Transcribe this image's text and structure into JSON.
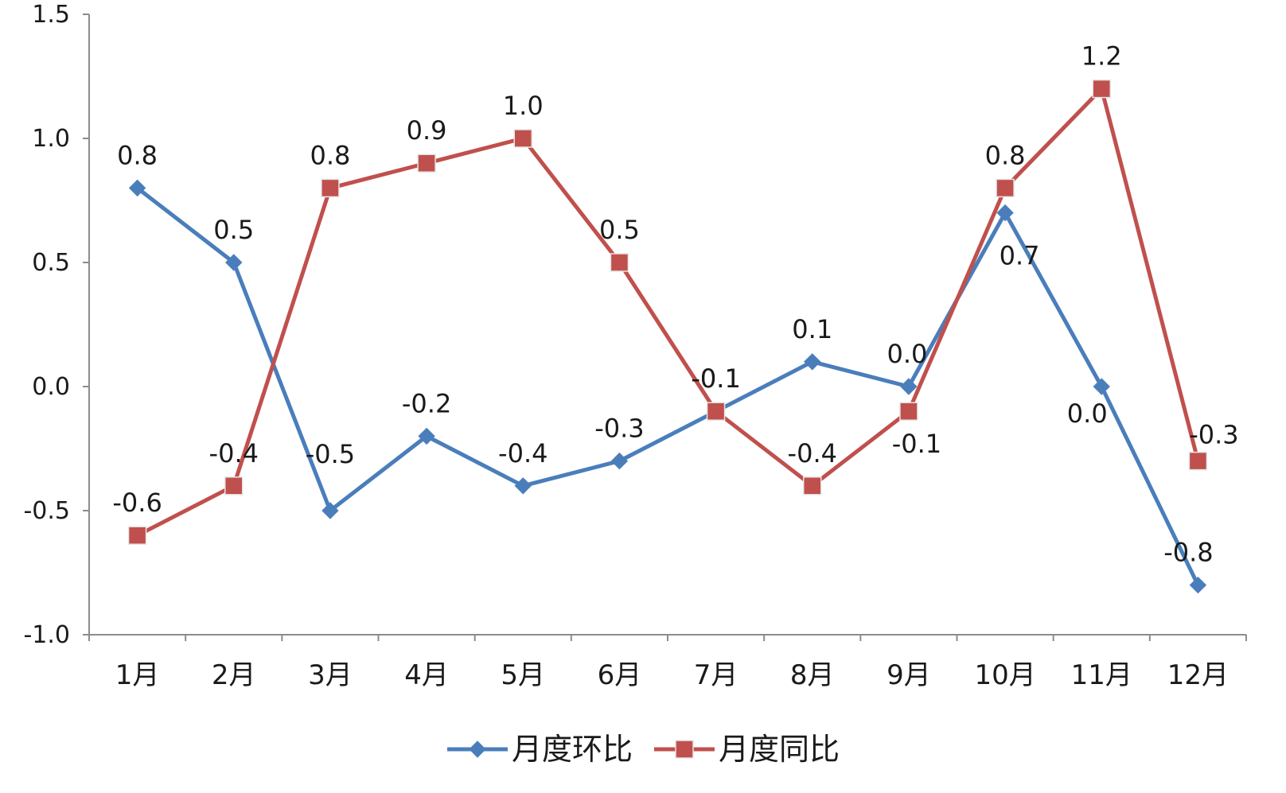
{
  "chart_data": {
    "type": "line",
    "categories": [
      "1月",
      "2月",
      "3月",
      "4月",
      "5月",
      "6月",
      "7月",
      "8月",
      "9月",
      "10月",
      "11月",
      "12月"
    ],
    "ylim": [
      -1.0,
      1.5
    ],
    "yticks": [
      "1.5",
      "1.0",
      "0.5",
      "0.0",
      "-0.5",
      "-1.0"
    ],
    "ytick_values": [
      1.5,
      1.0,
      0.5,
      0.0,
      -0.5,
      -1.0
    ],
    "grid": false,
    "legend_position": "bottom",
    "series": [
      {
        "name": "月度环比",
        "color": "#4a7ebb",
        "marker": "diamond",
        "values": [
          0.8,
          0.5,
          -0.5,
          -0.2,
          -0.4,
          -0.3,
          -0.1,
          0.1,
          0.0,
          0.7,
          0.0,
          -0.8
        ],
        "labels": [
          "0.8",
          "0.5",
          "-0.5",
          "-0.2",
          "-0.4",
          "-0.3",
          "-0.1",
          "0.1",
          "0.0",
          "0.7",
          "0.0",
          "-0.8"
        ]
      },
      {
        "name": "月度同比",
        "color": "#c0504d",
        "marker": "square",
        "values": [
          -0.6,
          -0.4,
          0.8,
          0.9,
          1.0,
          0.5,
          -0.1,
          -0.4,
          -0.1,
          0.8,
          1.2,
          -0.3
        ],
        "labels": [
          "-0.6",
          "-0.4",
          "0.8",
          "0.9",
          "1.0",
          "0.5",
          "-0.1",
          "-0.4",
          "-0.1",
          "0.8",
          "1.2",
          "-0.3"
        ]
      }
    ]
  }
}
